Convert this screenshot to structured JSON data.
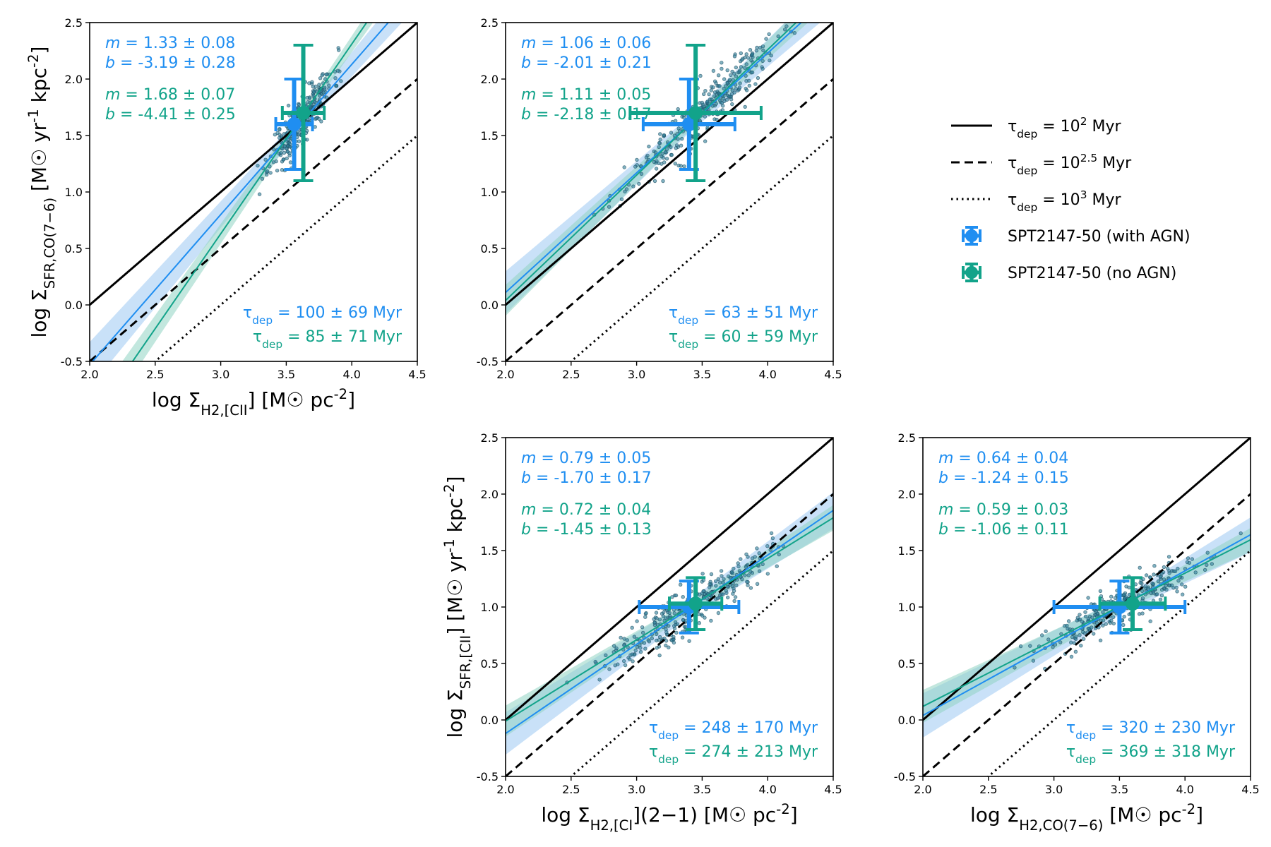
{
  "colors": {
    "with_agn": "#1f8ef1",
    "no_agn": "#12a38a",
    "points": "#2f7f9a",
    "band_with": "#9cc8f3",
    "band_no": "#8fd3c2",
    "axes": "#000000"
  },
  "legend": {
    "location": "right",
    "entries": [
      {
        "label": "τ_dep = 10^2 Myr",
        "style": "solid"
      },
      {
        "label": "τ_dep = 10^2.5 Myr",
        "style": "dashed"
      },
      {
        "label": "τ_dep = 10^3 Myr",
        "style": "dotted"
      },
      {
        "label": "SPT2147-50 (with AGN)",
        "style": "marker-with"
      },
      {
        "label": "SPT2147-50 (no AGN)",
        "style": "marker-no"
      }
    ]
  },
  "chart_data": [
    {
      "type": "scatter",
      "panel": "top-left",
      "xlabel": "log Σ_H2,[CII] [M☉ pc^-2]",
      "ylabel": "log Σ_SFR,CO(7−6) [M☉ yr^-1 kpc^-2]",
      "xlim": [
        2.0,
        4.5
      ],
      "ylim": [
        -0.5,
        2.5
      ],
      "xticks": [
        "2.0",
        "2.5",
        "3.0",
        "3.5",
        "4.0",
        "4.5"
      ],
      "yticks": [
        "-0.5",
        "0.0",
        "0.5",
        "1.0",
        "1.5",
        "2.0",
        "2.5"
      ],
      "depletion_lines": [
        {
          "log_tau": 2,
          "style": "solid"
        },
        {
          "log_tau": 2.5,
          "style": "dashed"
        },
        {
          "log_tau": 3,
          "style": "dotted"
        }
      ],
      "fits": [
        {
          "series": "with AGN",
          "m": 1.33,
          "b": -3.19,
          "m_text": "m = 1.33 ± 0.08",
          "b_text": "b = -3.19 ± 0.28"
        },
        {
          "series": "no AGN",
          "m": 1.68,
          "b": -4.41,
          "m_text": "m = 1.68 ± 0.07",
          "b_text": "b = -4.41 ± 0.25"
        }
      ],
      "tau_text": [
        "τ_dep = 100 ± 69 Myr",
        "τ_dep = 85 ± 71 Myr"
      ],
      "markers": [
        {
          "series": "with AGN",
          "x": 3.56,
          "y": 1.6,
          "xerr": 0.14,
          "yerr": 0.4
        },
        {
          "series": "no AGN",
          "x": 3.63,
          "y": 1.7,
          "xerr": 0.16,
          "yerr": 0.6
        }
      ],
      "cloud": {
        "center": [
          3.62,
          1.7
        ],
        "sx": 0.12,
        "sy": 0.24,
        "corr": 0.75,
        "n": 300,
        "seed": 11
      }
    },
    {
      "type": "scatter",
      "panel": "top-middle",
      "xlabel": "",
      "ylabel": "",
      "xlim": [
        2.0,
        4.5
      ],
      "ylim": [
        -0.5,
        2.5
      ],
      "xticks": [
        "2.0",
        "2.5",
        "3.0",
        "3.5",
        "4.0",
        "4.5"
      ],
      "yticks": [
        "-0.5",
        "0.0",
        "0.5",
        "1.0",
        "1.5",
        "2.0",
        "2.5"
      ],
      "depletion_lines": [
        {
          "log_tau": 2,
          "style": "solid"
        },
        {
          "log_tau": 2.5,
          "style": "dashed"
        },
        {
          "log_tau": 3,
          "style": "dotted"
        }
      ],
      "fits": [
        {
          "series": "with AGN",
          "m": 1.06,
          "b": -2.01,
          "m_text": "m = 1.06 ± 0.06",
          "b_text": "b = -2.01 ± 0.21"
        },
        {
          "series": "no AGN",
          "m": 1.11,
          "b": -2.18,
          "m_text": "m = 1.11 ± 0.05",
          "b_text": "b = -2.18 ± 0.17"
        }
      ],
      "tau_text": [
        "τ_dep = 63 ± 51 Myr",
        "τ_dep = 60 ± 59 Myr"
      ],
      "markers": [
        {
          "series": "with AGN",
          "x": 3.4,
          "y": 1.6,
          "xerr": 0.35,
          "yerr": 0.4
        },
        {
          "series": "no AGN",
          "x": 3.45,
          "y": 1.7,
          "xerr": 0.5,
          "yerr": 0.6
        }
      ],
      "cloud": {
        "center": [
          3.5,
          1.7
        ],
        "sx": 0.28,
        "sy": 0.3,
        "corr": 0.9,
        "n": 320,
        "seed": 23
      }
    },
    {
      "type": "scatter",
      "panel": "bottom-middle",
      "xlabel": "log Σ_H2,[CI](2−1) [M☉ pc^-2]",
      "ylabel": "log Σ_SFR,[CII] [M☉ yr^-1 kpc^-2]",
      "xlim": [
        2.0,
        4.5
      ],
      "ylim": [
        -0.5,
        2.5
      ],
      "xticks": [
        "2.0",
        "2.5",
        "3.0",
        "3.5",
        "4.0",
        "4.5"
      ],
      "yticks": [
        "-0.5",
        "0.0",
        "0.5",
        "1.0",
        "1.5",
        "2.0",
        "2.5"
      ],
      "depletion_lines": [
        {
          "log_tau": 2,
          "style": "solid"
        },
        {
          "log_tau": 2.5,
          "style": "dashed"
        },
        {
          "log_tau": 3,
          "style": "dotted"
        }
      ],
      "fits": [
        {
          "series": "with AGN",
          "m": 0.79,
          "b": -1.7,
          "m_text": "m = 0.79 ± 0.05",
          "b_text": "b = -1.70 ± 0.17"
        },
        {
          "series": "no AGN",
          "m": 0.72,
          "b": -1.45,
          "m_text": "m = 0.72 ± 0.04",
          "b_text": "b = -1.45 ± 0.13"
        }
      ],
      "tau_text": [
        "τ_dep = 248 ± 170 Myr",
        "τ_dep = 274 ± 213 Myr"
      ],
      "markers": [
        {
          "series": "with AGN",
          "x": 3.4,
          "y": 1.0,
          "xerr": 0.38,
          "yerr": 0.23
        },
        {
          "series": "no AGN",
          "x": 3.45,
          "y": 1.03,
          "xerr": 0.2,
          "yerr": 0.23
        }
      ],
      "cloud": {
        "center": [
          3.4,
          1.0
        ],
        "sx": 0.3,
        "sy": 0.18,
        "corr": 0.45,
        "n": 320,
        "seed": 37
      }
    },
    {
      "type": "scatter",
      "panel": "bottom-right",
      "xlabel": "log Σ_H2,CO(7−6) [M☉ pc^-2]",
      "ylabel": "",
      "xlim": [
        2.0,
        4.5
      ],
      "ylim": [
        -0.5,
        2.5
      ],
      "xticks": [
        "2.0",
        "2.5",
        "3.0",
        "3.5",
        "4.0",
        "4.5"
      ],
      "yticks": [
        "-0.5",
        "0.0",
        "0.5",
        "1.0",
        "1.5",
        "2.0",
        "2.5"
      ],
      "depletion_lines": [
        {
          "log_tau": 2,
          "style": "solid"
        },
        {
          "log_tau": 2.5,
          "style": "dashed"
        },
        {
          "log_tau": 3,
          "style": "dotted"
        }
      ],
      "fits": [
        {
          "series": "with AGN",
          "m": 0.64,
          "b": -1.24,
          "m_text": "m = 0.64 ± 0.04",
          "b_text": "b = -1.24 ± 0.15"
        },
        {
          "series": "no AGN",
          "m": 0.59,
          "b": -1.06,
          "m_text": "m = 0.59 ± 0.03",
          "b_text": "b = -1.06 ± 0.11"
        }
      ],
      "tau_text": [
        "τ_dep = 320 ± 230 Myr",
        "τ_dep = 369 ± 318 Myr"
      ],
      "markers": [
        {
          "series": "with AGN",
          "x": 3.5,
          "y": 1.0,
          "xerr": 0.5,
          "yerr": 0.23
        },
        {
          "series": "no AGN",
          "x": 3.6,
          "y": 1.03,
          "xerr": 0.25,
          "yerr": 0.23
        }
      ],
      "cloud": {
        "center": [
          3.55,
          1.0
        ],
        "sx": 0.32,
        "sy": 0.17,
        "corr": 0.55,
        "n": 320,
        "seed": 53
      }
    }
  ]
}
